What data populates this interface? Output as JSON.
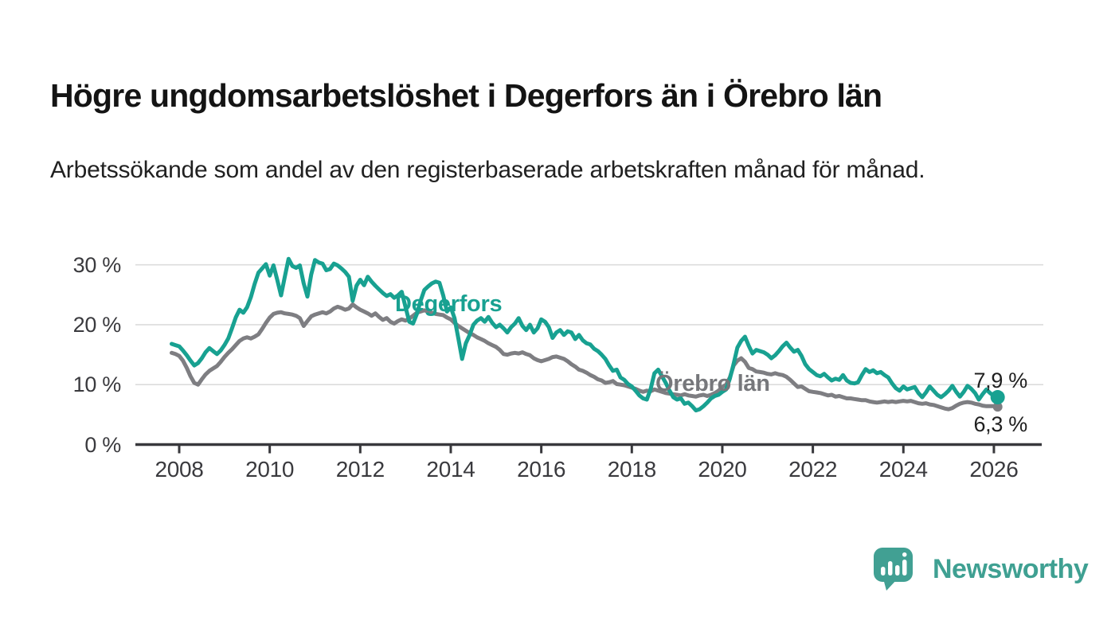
{
  "header": {
    "title": "Högre ungdomsarbetslöshet i Degerfors än i Örebro län",
    "subtitle": "Arbetssökande som andel av den registerbaserade arbetskraften månad för månad."
  },
  "chart_data": {
    "type": "line",
    "title": "Högre ungdomsarbetslöshet i Degerfors än i Örebro län",
    "xlabel": "",
    "ylabel": "Arbetssökande som andel av den registerbaserade arbetskraften",
    "unit": "%",
    "grid": "horizontal",
    "x_start_year": 2007.8333,
    "x_step_years": 0.08333,
    "xlim": [
      2007.7,
      2027.1
    ],
    "ylim": [
      0,
      33
    ],
    "x_tick_years": [
      2008,
      2010,
      2012,
      2014,
      2016,
      2018,
      2020,
      2022,
      2024,
      2026
    ],
    "x_tick_labels": [
      "2008",
      "2010",
      "2012",
      "2014",
      "2016",
      "2018",
      "2020",
      "2022",
      "2024",
      "2026"
    ],
    "y_tick_values": [
      0,
      10,
      20,
      30
    ],
    "y_tick_labels": [
      "0 %",
      "10 %",
      "20 %",
      "30 %"
    ],
    "series": [
      {
        "name": "Degerfors",
        "color": "#18a191",
        "values": [
          16.8,
          16.6,
          16.4,
          15.7,
          14.9,
          14.0,
          13.2,
          13.6,
          14.4,
          15.4,
          16.1,
          15.6,
          15.1,
          15.7,
          16.6,
          17.7,
          19.4,
          21.2,
          22.5,
          22.0,
          22.9,
          24.6,
          26.8,
          28.7,
          29.4,
          30.1,
          28.2,
          29.9,
          27.5,
          24.9,
          28.0,
          31.0,
          29.8,
          29.5,
          29.9,
          26.9,
          24.7,
          28.4,
          30.8,
          30.4,
          30.2,
          29.1,
          29.3,
          30.2,
          29.9,
          29.4,
          28.8,
          28.0,
          24.0,
          26.5,
          27.5,
          26.6,
          28.0,
          27.2,
          26.5,
          25.9,
          25.3,
          24.8,
          25.1,
          24.5,
          24.9,
          25.5,
          23.0,
          20.5,
          20.2,
          21.8,
          24.0,
          25.8,
          26.4,
          26.9,
          27.2,
          27.0,
          24.9,
          22.2,
          22.9,
          21.1,
          17.8,
          14.3,
          16.9,
          18.3,
          20.0,
          20.7,
          21.1,
          20.5,
          21.3,
          20.3,
          19.6,
          20.0,
          19.4,
          18.7,
          19.6,
          20.2,
          21.1,
          19.8,
          19.1,
          20.0,
          18.7,
          19.4,
          20.9,
          20.5,
          19.6,
          17.8,
          18.7,
          19.1,
          18.3,
          18.9,
          18.7,
          17.6,
          18.3,
          17.4,
          16.9,
          16.7,
          16.0,
          15.6,
          15.0,
          14.3,
          13.2,
          12.3,
          12.5,
          11.2,
          10.8,
          10.1,
          9.7,
          9.0,
          8.2,
          7.7,
          7.5,
          9.3,
          11.9,
          12.5,
          11.4,
          10.3,
          9.0,
          7.9,
          7.5,
          7.7,
          6.8,
          7.0,
          6.4,
          5.7,
          5.9,
          6.4,
          7.0,
          7.7,
          8.1,
          8.3,
          8.8,
          9.2,
          11.0,
          13.5,
          16.2,
          17.3,
          18.0,
          16.5,
          15.2,
          15.8,
          15.6,
          15.4,
          15.0,
          14.4,
          14.9,
          15.6,
          16.4,
          17.0,
          16.2,
          15.5,
          15.8,
          14.8,
          13.4,
          12.6,
          12.1,
          11.6,
          11.4,
          11.8,
          11.2,
          10.7,
          11.0,
          10.8,
          11.6,
          10.7,
          10.3,
          10.2,
          10.4,
          11.6,
          12.6,
          12.1,
          12.4,
          11.9,
          12.1,
          11.6,
          11.2,
          10.2,
          9.4,
          9.0,
          9.7,
          9.2,
          9.4,
          9.6,
          8.6,
          7.9,
          8.7,
          9.7,
          9.0,
          8.3,
          7.9,
          8.4,
          9.0,
          9.8,
          8.8,
          8.0,
          8.8,
          9.8,
          9.3,
          8.6,
          7.5,
          8.4,
          9.2,
          8.6,
          8.1,
          7.9
        ]
      },
      {
        "name": "Örebro län",
        "color": "#7e7e82",
        "values": [
          15.3,
          15.1,
          14.8,
          14.0,
          12.8,
          11.4,
          10.3,
          10.0,
          10.9,
          11.7,
          12.3,
          12.7,
          13.1,
          13.8,
          14.6,
          15.3,
          15.9,
          16.6,
          17.3,
          17.7,
          17.9,
          17.7,
          18.0,
          18.4,
          19.3,
          20.3,
          21.2,
          21.8,
          22.0,
          22.1,
          21.9,
          21.8,
          21.7,
          21.5,
          21.1,
          19.8,
          20.6,
          21.4,
          21.7,
          21.9,
          22.1,
          21.9,
          22.2,
          22.7,
          23.0,
          22.8,
          22.5,
          22.7,
          23.4,
          22.9,
          22.5,
          22.2,
          21.9,
          21.5,
          21.9,
          21.3,
          20.8,
          21.1,
          20.5,
          20.2,
          20.6,
          20.9,
          20.7,
          21.0,
          21.5,
          22.0,
          22.2,
          22.4,
          22.2,
          22.0,
          21.8,
          21.7,
          21.6,
          21.2,
          20.9,
          20.3,
          19.8,
          19.4,
          19.0,
          18.6,
          18.3,
          17.9,
          17.6,
          17.3,
          16.9,
          16.6,
          16.3,
          15.8,
          15.1,
          15.0,
          15.2,
          15.3,
          15.2,
          15.4,
          15.1,
          14.9,
          14.4,
          14.1,
          13.9,
          14.1,
          14.3,
          14.6,
          14.7,
          14.5,
          14.3,
          13.9,
          13.4,
          13.0,
          12.5,
          12.3,
          12.0,
          11.6,
          11.3,
          10.9,
          10.7,
          10.3,
          10.4,
          10.6,
          10.1,
          10.0,
          9.9,
          9.7,
          9.5,
          9.3,
          9.0,
          8.8,
          9.0,
          8.9,
          9.2,
          9.0,
          8.8,
          8.6,
          8.5,
          8.4,
          8.3,
          8.2,
          8.4,
          8.2,
          8.1,
          8.0,
          8.2,
          8.3,
          8.1,
          8.3,
          8.6,
          9.0,
          9.6,
          10.0,
          11.2,
          13.2,
          14.0,
          14.4,
          13.8,
          12.8,
          12.6,
          12.2,
          12.1,
          12.0,
          11.8,
          11.7,
          11.9,
          11.7,
          11.6,
          11.3,
          10.8,
          10.2,
          9.6,
          9.7,
          9.3,
          8.9,
          8.8,
          8.7,
          8.6,
          8.4,
          8.2,
          8.3,
          8.0,
          8.1,
          7.9,
          7.7,
          7.7,
          7.6,
          7.5,
          7.4,
          7.4,
          7.2,
          7.1,
          7.0,
          7.1,
          7.2,
          7.1,
          7.2,
          7.1,
          7.2,
          7.3,
          7.2,
          7.3,
          7.1,
          6.9,
          6.8,
          6.9,
          6.7,
          6.6,
          6.4,
          6.2,
          6.0,
          5.9,
          6.1,
          6.5,
          6.8,
          7.0,
          7.1,
          7.0,
          6.8,
          6.7,
          6.5,
          6.4,
          6.4,
          6.4,
          6.3
        ]
      }
    ],
    "end_labels": [
      {
        "series": "Degerfors",
        "text": "7,9 %",
        "value": 7.9
      },
      {
        "series": "Örebro län",
        "text": "6,3 %",
        "value": 6.3
      }
    ],
    "legend_position": "inline-labels"
  },
  "annotations": {
    "degerfors_label": "Degerfors",
    "orebro_label": "Örebro län",
    "end_value_degerfors": "7,9 %",
    "end_value_orebro": "6,3 %"
  },
  "branding": {
    "logo_text": "Newsworthy",
    "logo_icon": "newsworthy-speech-bubble-bar-chart-icon"
  },
  "colors": {
    "degerfors_line": "#18a191",
    "orebro_line": "#7e7e82",
    "degerfors_label": "#18a191",
    "orebro_label": "#76777b",
    "grid": "#dcdcdc",
    "axis": "#38383c",
    "tick_text": "#3a3a3e",
    "title_text": "#141414",
    "logo_teal": "#41a093"
  }
}
